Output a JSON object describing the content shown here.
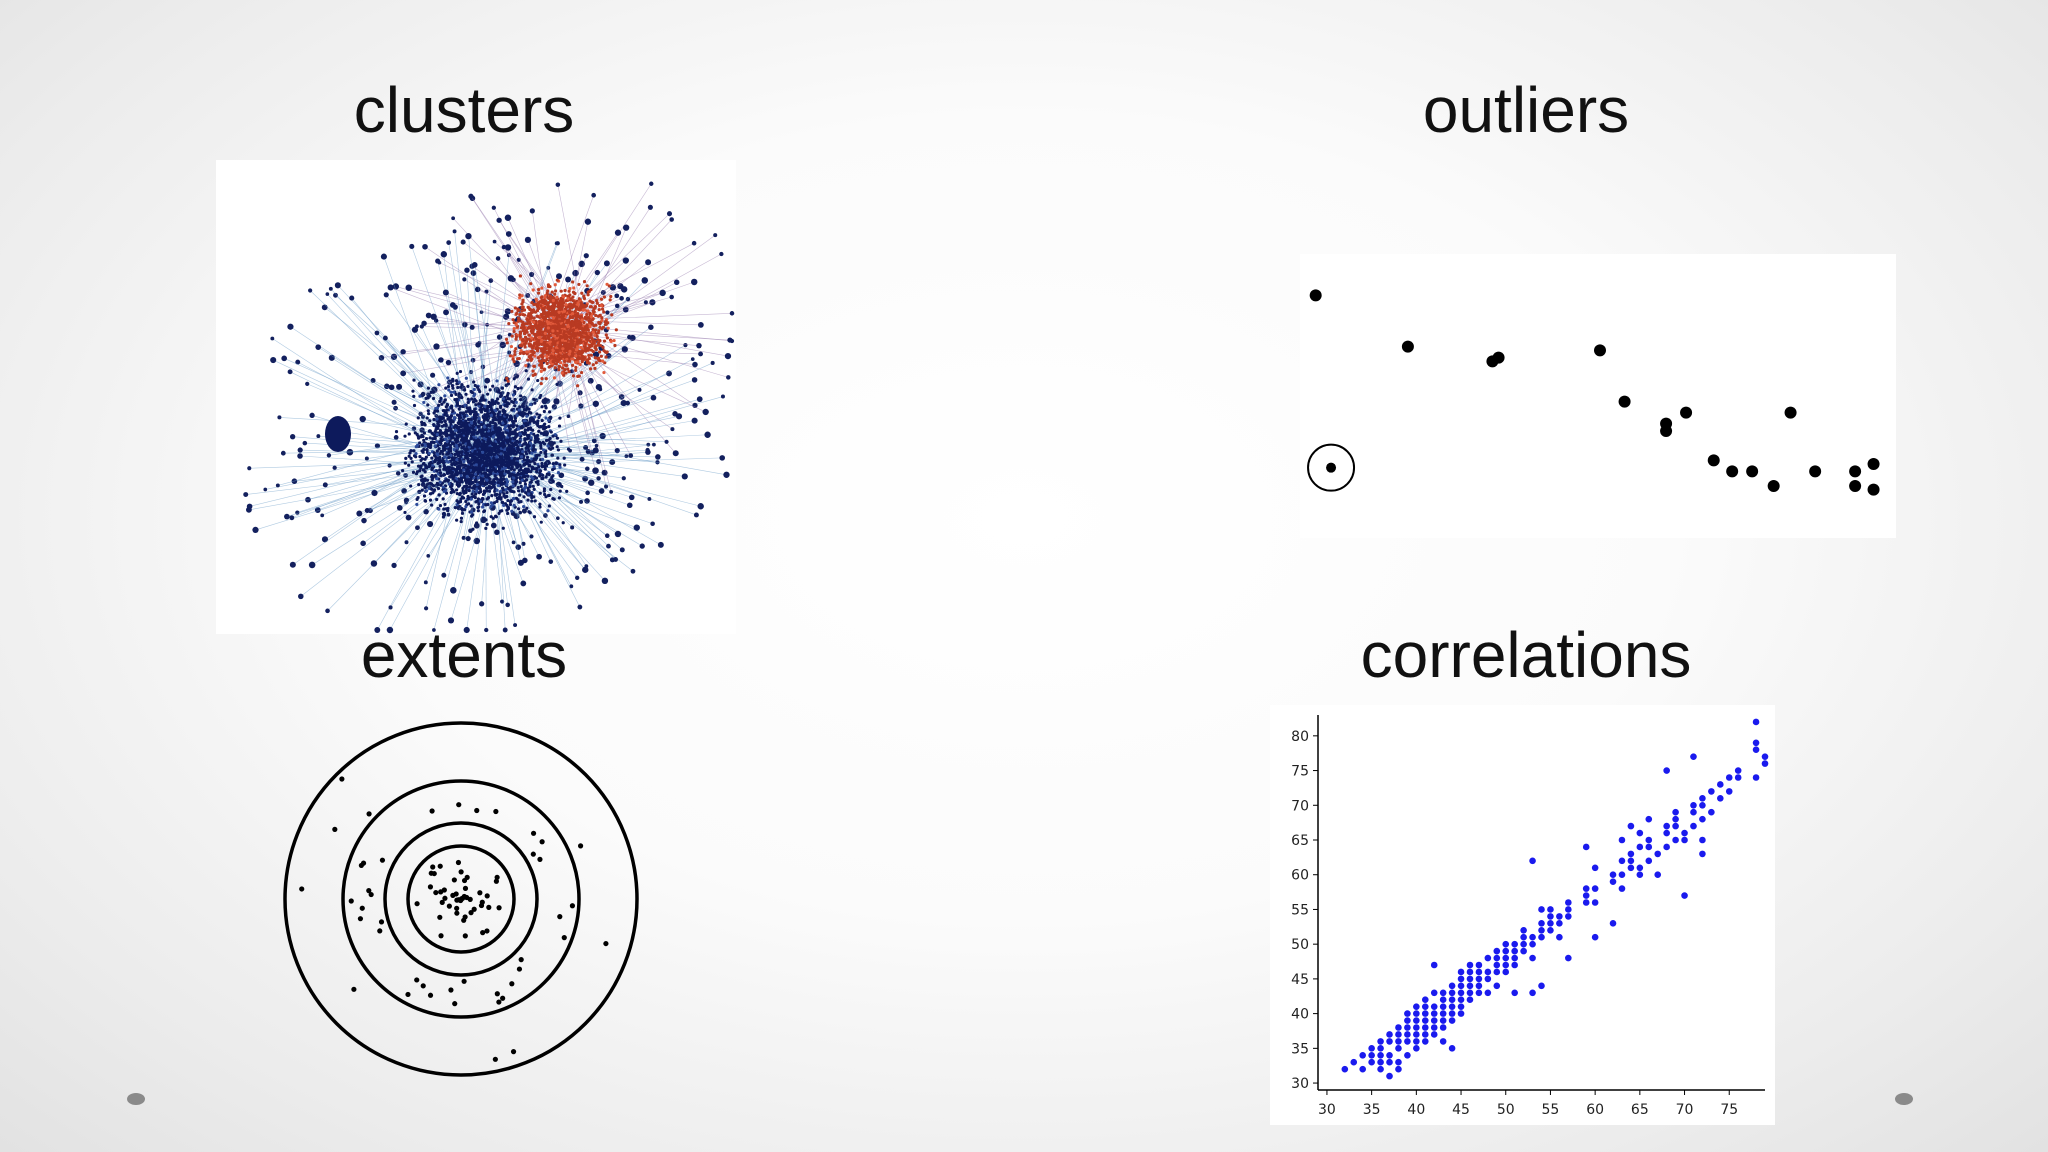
{
  "slide": {
    "titles": {
      "clusters": "clusters",
      "outliers": "outliers",
      "extents": "extents",
      "correlations": "correlations"
    }
  },
  "chart_data": [
    {
      "type": "scatter",
      "panel": "outliers",
      "title": "outliers",
      "points": [
        [
          0.5,
          4.2
        ],
        [
          6.5,
          3.5
        ],
        [
          12.0,
          3.3
        ],
        [
          12.4,
          3.35
        ],
        [
          19.0,
          3.45
        ],
        [
          20.6,
          2.75
        ],
        [
          23.3,
          2.45
        ],
        [
          23.3,
          2.35
        ],
        [
          24.6,
          2.6
        ],
        [
          26.4,
          1.95
        ],
        [
          27.6,
          1.8
        ],
        [
          28.9,
          1.8
        ],
        [
          30.3,
          1.6
        ],
        [
          31.4,
          2.6
        ],
        [
          33.0,
          1.8
        ],
        [
          35.6,
          1.8
        ],
        [
          35.6,
          1.6
        ],
        [
          36.8,
          1.9
        ],
        [
          36.8,
          1.55
        ]
      ],
      "outlier": [
        1.5,
        1.85
      ],
      "xlim": [
        0,
        38
      ],
      "ylim": [
        1,
        4.6
      ]
    },
    {
      "type": "scatter",
      "panel": "correlations",
      "title": "correlations",
      "xticks": [
        30,
        35,
        40,
        45,
        50,
        55,
        60,
        65,
        70,
        75
      ],
      "yticks": [
        30,
        35,
        40,
        45,
        50,
        55,
        60,
        65,
        70,
        75,
        80
      ],
      "xlim": [
        29,
        79
      ],
      "ylim": [
        29,
        83
      ],
      "points": [
        [
          32,
          32
        ],
        [
          33,
          33
        ],
        [
          34,
          34
        ],
        [
          34,
          32
        ],
        [
          35,
          33
        ],
        [
          35,
          35
        ],
        [
          35,
          34
        ],
        [
          36,
          33
        ],
        [
          36,
          35
        ],
        [
          36,
          36
        ],
        [
          36,
          34
        ],
        [
          36,
          32
        ],
        [
          37,
          34
        ],
        [
          37,
          36
        ],
        [
          37,
          37
        ],
        [
          37,
          33
        ],
        [
          37,
          31
        ],
        [
          38,
          35
        ],
        [
          38,
          37
        ],
        [
          38,
          38
        ],
        [
          38,
          36
        ],
        [
          38,
          33
        ],
        [
          38,
          32
        ],
        [
          39,
          36
        ],
        [
          39,
          38
        ],
        [
          39,
          39
        ],
        [
          39,
          37
        ],
        [
          39,
          34
        ],
        [
          39,
          40
        ],
        [
          40,
          37
        ],
        [
          40,
          38
        ],
        [
          40,
          39
        ],
        [
          40,
          40
        ],
        [
          40,
          36
        ],
        [
          40,
          41
        ],
        [
          40,
          35
        ],
        [
          41,
          38
        ],
        [
          41,
          39
        ],
        [
          41,
          40
        ],
        [
          41,
          37
        ],
        [
          41,
          42
        ],
        [
          41,
          36
        ],
        [
          41,
          41
        ],
        [
          42,
          39
        ],
        [
          42,
          40
        ],
        [
          42,
          41
        ],
        [
          42,
          43
        ],
        [
          42,
          38
        ],
        [
          42,
          37
        ],
        [
          42,
          47
        ],
        [
          43,
          40
        ],
        [
          43,
          41
        ],
        [
          43,
          42
        ],
        [
          43,
          43
        ],
        [
          43,
          39
        ],
        [
          43,
          38
        ],
        [
          43,
          36
        ],
        [
          44,
          41
        ],
        [
          44,
          42
        ],
        [
          44,
          43
        ],
        [
          44,
          44
        ],
        [
          44,
          40
        ],
        [
          44,
          39
        ],
        [
          44,
          35
        ],
        [
          45,
          42
        ],
        [
          45,
          43
        ],
        [
          45,
          44
        ],
        [
          45,
          45
        ],
        [
          45,
          41
        ],
        [
          45,
          46
        ],
        [
          45,
          40
        ],
        [
          46,
          43
        ],
        [
          46,
          44
        ],
        [
          46,
          45
        ],
        [
          46,
          46
        ],
        [
          46,
          47
        ],
        [
          46,
          42
        ],
        [
          47,
          44
        ],
        [
          47,
          45
        ],
        [
          47,
          46
        ],
        [
          47,
          47
        ],
        [
          47,
          43
        ],
        [
          48,
          45
        ],
        [
          48,
          46
        ],
        [
          48,
          48
        ],
        [
          48,
          43
        ],
        [
          49,
          46
        ],
        [
          49,
          47
        ],
        [
          49,
          48
        ],
        [
          49,
          49
        ],
        [
          49,
          44
        ],
        [
          50,
          47
        ],
        [
          50,
          48
        ],
        [
          50,
          49
        ],
        [
          50,
          50
        ],
        [
          50,
          46
        ],
        [
          51,
          48
        ],
        [
          51,
          49
        ],
        [
          51,
          50
        ],
        [
          51,
          47
        ],
        [
          51,
          43
        ],
        [
          52,
          49
        ],
        [
          52,
          50
        ],
        [
          52,
          51
        ],
        [
          52,
          52
        ],
        [
          53,
          50
        ],
        [
          53,
          51
        ],
        [
          53,
          48
        ],
        [
          53,
          43
        ],
        [
          53,
          62
        ],
        [
          54,
          51
        ],
        [
          54,
          52
        ],
        [
          54,
          53
        ],
        [
          54,
          55
        ],
        [
          54,
          44
        ],
        [
          55,
          52
        ],
        [
          55,
          53
        ],
        [
          55,
          54
        ],
        [
          55,
          55
        ],
        [
          56,
          53
        ],
        [
          56,
          54
        ],
        [
          56,
          51
        ],
        [
          57,
          54
        ],
        [
          57,
          55
        ],
        [
          57,
          56
        ],
        [
          57,
          48
        ],
        [
          59,
          56
        ],
        [
          59,
          57
        ],
        [
          59,
          58
        ],
        [
          59,
          64
        ],
        [
          60,
          56
        ],
        [
          60,
          58
        ],
        [
          60,
          61
        ],
        [
          60,
          51
        ],
        [
          62,
          59
        ],
        [
          62,
          60
        ],
        [
          62,
          53
        ],
        [
          63,
          60
        ],
        [
          63,
          62
        ],
        [
          63,
          65
        ],
        [
          63,
          58
        ],
        [
          64,
          61
        ],
        [
          64,
          62
        ],
        [
          64,
          63
        ],
        [
          64,
          67
        ],
        [
          65,
          60
        ],
        [
          65,
          61
        ],
        [
          65,
          64
        ],
        [
          65,
          66
        ],
        [
          66,
          62
        ],
        [
          66,
          64
        ],
        [
          66,
          65
        ],
        [
          66,
          68
        ],
        [
          67,
          63
        ],
        [
          67,
          60
        ],
        [
          68,
          64
        ],
        [
          68,
          66
        ],
        [
          68,
          67
        ],
        [
          68,
          75
        ],
        [
          69,
          65
        ],
        [
          69,
          67
        ],
        [
          69,
          68
        ],
        [
          69,
          69
        ],
        [
          70,
          65
        ],
        [
          70,
          66
        ],
        [
          70,
          57
        ],
        [
          71,
          67
        ],
        [
          71,
          69
        ],
        [
          71,
          70
        ],
        [
          71,
          77
        ],
        [
          72,
          65
        ],
        [
          72,
          63
        ],
        [
          72,
          68
        ],
        [
          72,
          70
        ],
        [
          72,
          71
        ],
        [
          73,
          69
        ],
        [
          73,
          72
        ],
        [
          74,
          71
        ],
        [
          74,
          73
        ],
        [
          75,
          72
        ],
        [
          75,
          74
        ],
        [
          76,
          74
        ],
        [
          76,
          75
        ],
        [
          78,
          74
        ],
        [
          78,
          78
        ],
        [
          78,
          79
        ],
        [
          78,
          82
        ],
        [
          79,
          77
        ],
        [
          79,
          76
        ]
      ]
    }
  ]
}
